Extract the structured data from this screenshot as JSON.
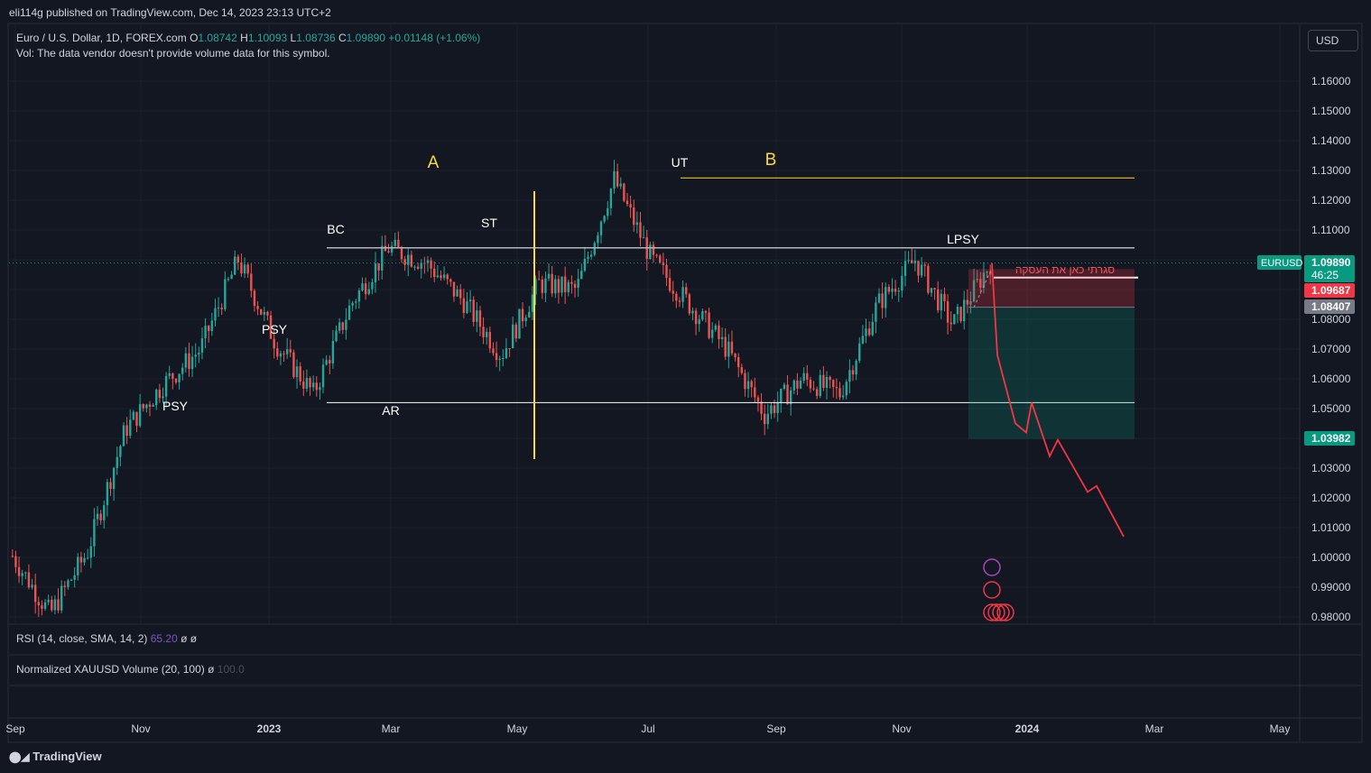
{
  "header": {
    "published": "eli114g published on TradingView.com, Dec 14, 2023 23:13 UTC+2",
    "symbol": "Euro / U.S. Dollar, 1D, FOREX.com",
    "o_label": "O",
    "o_value": "1.08742",
    "h_label": "H",
    "h_value": "1.10093",
    "l_label": "L",
    "l_value": "1.08736",
    "c_label": "C",
    "c_value": "1.09890",
    "change": "+0.01148 (+1.06%)",
    "vol_note": "Vol: The data vendor doesn't provide volume data for this symbol."
  },
  "currency_button": "USD",
  "footer": {
    "brand": "TradingView"
  },
  "panes": {
    "rsi": {
      "label": "RSI (14, close, SMA, 14, 2)",
      "value": "65.20",
      "extra": "ø ø"
    },
    "volume": {
      "label": "Normalized XAUUSD Volume (20, 100)",
      "extra": "ø",
      "value": "100.0"
    }
  },
  "chart_data": {
    "type": "candlestick",
    "symbol": "EURUSD",
    "ylim": [
      0.975,
      1.17
    ],
    "y_ticks": [
      "1.16000",
      "1.15000",
      "1.14000",
      "1.13000",
      "1.12000",
      "1.11000",
      "1.10000",
      "1.09000",
      "1.08000",
      "1.07000",
      "1.06000",
      "1.05000",
      "1.04000",
      "1.03000",
      "1.02000",
      "1.01000",
      "1.00000",
      "0.99000",
      "0.98000"
    ],
    "x_ticks": [
      "Sep",
      "Nov",
      "2023",
      "Mar",
      "May",
      "Jul",
      "Sep",
      "Nov",
      "2024",
      "Mar",
      "May"
    ],
    "price_path": [
      [
        "Sep",
        1.0005
      ],
      [
        "Oct",
        0.981
      ],
      [
        "Nov",
        1.002
      ],
      [
        "Nov",
        1.043
      ],
      [
        "Dec",
        1.058
      ],
      [
        "Jan",
        1.07
      ],
      [
        "Feb",
        1.1
      ],
      [
        "Feb",
        1.072
      ],
      [
        "Mar",
        1.055
      ],
      [
        "Apr",
        1.085
      ],
      [
        "Apr",
        1.104
      ],
      [
        "May",
        1.099
      ],
      [
        "May",
        1.086
      ],
      [
        "Jun",
        1.068
      ],
      [
        "Jun",
        1.092
      ],
      [
        "Jul",
        1.09
      ],
      [
        "Jul",
        1.127
      ],
      [
        "Aug",
        1.1
      ],
      [
        "Sep",
        1.085
      ],
      [
        "Sep",
        1.07
      ],
      [
        "Oct",
        1.048
      ],
      [
        "Oct",
        1.06
      ],
      [
        "Nov",
        1.055
      ],
      [
        "Nov",
        1.085
      ],
      [
        "Nov",
        1.1
      ],
      [
        "Dec",
        1.078
      ],
      [
        "Dec",
        1.0989
      ]
    ],
    "levels": [
      {
        "name": "resistance",
        "value": 1.104
      },
      {
        "name": "support",
        "value": 1.052
      },
      {
        "name": "ut-high",
        "value": 1.1275
      },
      {
        "name": "entry",
        "value": 1.094
      }
    ],
    "projection": [
      1.0989,
      1.068,
      1.045,
      1.042,
      1.052,
      1.034,
      1.0395,
      1.022,
      1.024,
      1.007
    ],
    "position": {
      "type": "short",
      "stop": 1.09687,
      "entry": 1.08407,
      "target": 1.03982
    },
    "annotations": [
      "A",
      "B",
      "BC",
      "ST",
      "UT",
      "LPSY",
      "PSY",
      "PSY",
      "AR"
    ],
    "note_text": "סגרתי כאן את העסקה",
    "price_tags": [
      {
        "label": "EURUSD",
        "value": "1.09890",
        "timer": "46:25",
        "color": "#089981"
      },
      {
        "value": "1.09687",
        "color": "#f23645"
      },
      {
        "value": "1.08407",
        "color": "#787b86"
      },
      {
        "value": "1.03982",
        "color": "#089981"
      }
    ],
    "colors": {
      "up": "#26a69a",
      "down": "#ef5350",
      "accent": "#fdd835",
      "projection": "#f23645"
    }
  }
}
